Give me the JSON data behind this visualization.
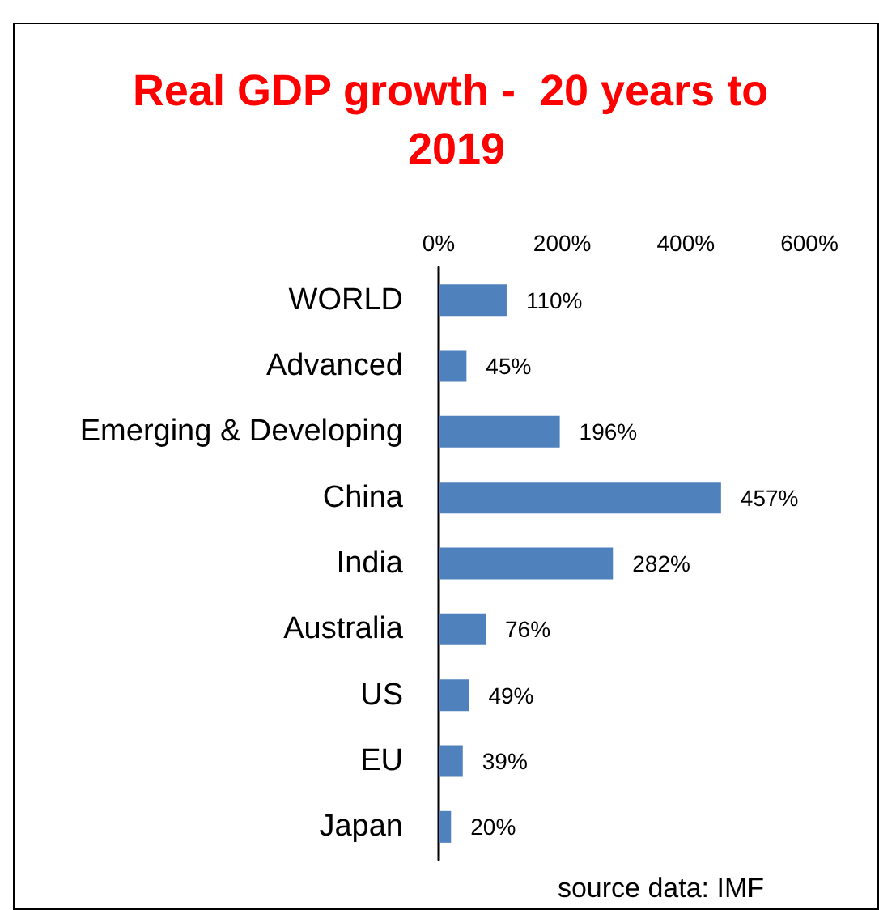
{
  "chart_data": {
    "type": "bar",
    "orientation": "horizontal",
    "title": "Real GDP growth -  20 years to 2019",
    "categories": [
      "WORLD",
      "Advanced",
      "Emerging & Developing",
      "China",
      "India",
      "Australia",
      "US",
      "EU",
      "Japan"
    ],
    "values": [
      110,
      45,
      196,
      457,
      282,
      76,
      49,
      39,
      20
    ],
    "value_labels": [
      "110%",
      "45%",
      "196%",
      "457%",
      "282%",
      "76%",
      "49%",
      "39%",
      "20%"
    ],
    "color": "#4f81bd",
    "xlim": [
      0,
      600
    ],
    "xticks": [
      {
        "value": 0,
        "label": "0%"
      },
      {
        "value": 200,
        "label": "200%"
      },
      {
        "value": 400,
        "label": "400%"
      },
      {
        "value": 600,
        "label": "600%"
      }
    ],
    "grid": false,
    "annotations": [
      "source data: IMF"
    ]
  }
}
